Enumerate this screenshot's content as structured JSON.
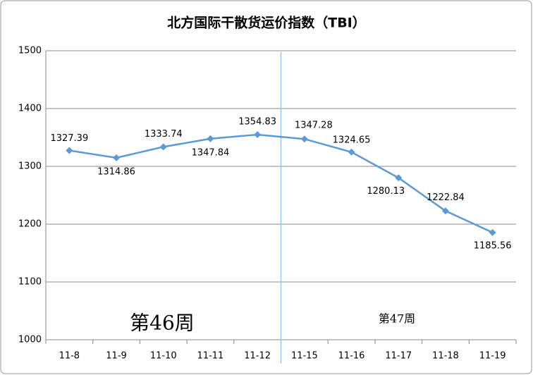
{
  "chart_data": {
    "type": "line",
    "title": "北方国际干散货运价指数（TBI）",
    "categories": [
      "11-8",
      "11-9",
      "11-10",
      "11-11",
      "11-12",
      "11-15",
      "11-16",
      "11-17",
      "11-18",
      "11-19"
    ],
    "series": [
      {
        "name": "TBI",
        "color": "#5b9bd5",
        "values": [
          1327.39,
          1314.86,
          1333.74,
          1347.84,
          1354.83,
          1347.28,
          1324.65,
          1280.13,
          1222.84,
          1185.56
        ]
      }
    ],
    "ylim": [
      1000,
      1500
    ],
    "yticks": [
      1000,
      1100,
      1200,
      1300,
      1400,
      1500
    ],
    "grid": true,
    "annotations": [
      "第46周",
      "第47周"
    ]
  }
}
